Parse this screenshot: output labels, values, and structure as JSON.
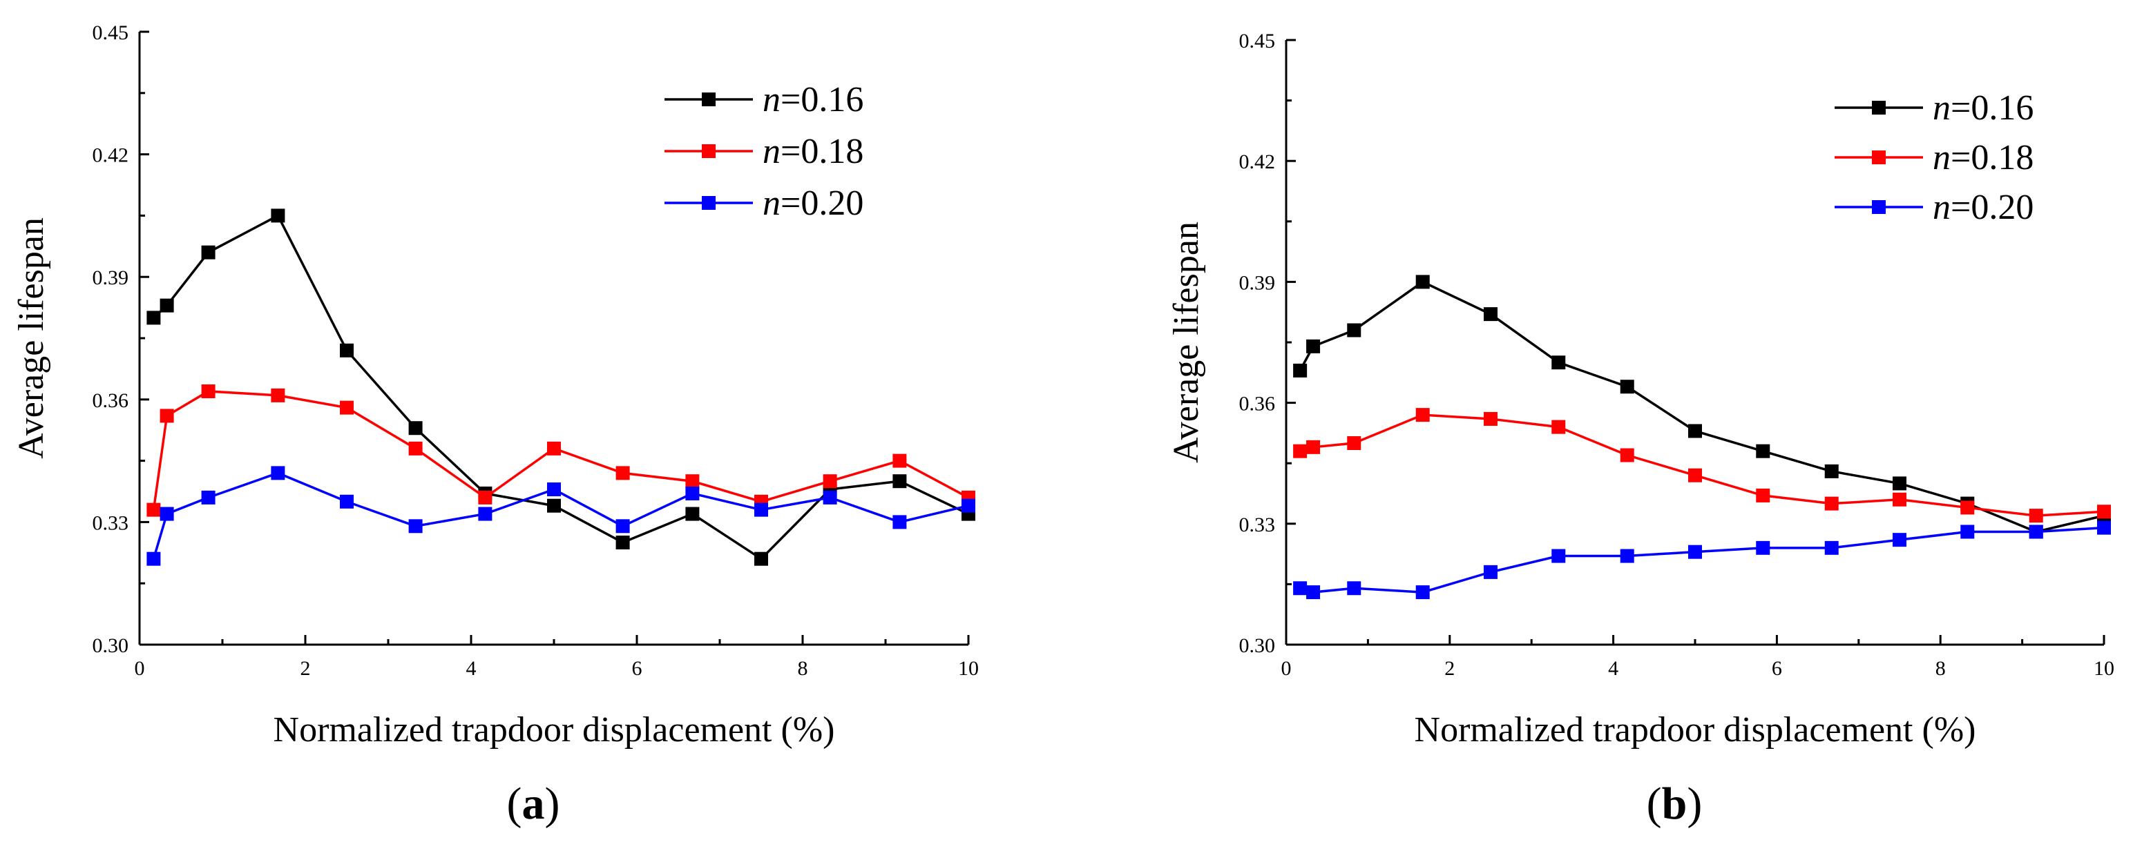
{
  "chart_data": [
    {
      "type": "line",
      "panel_label": "a",
      "title": "",
      "xlabel": "Normalized trapdoor displacement (%)",
      "ylabel": "Average lifespan",
      "xlim": [
        0,
        10
      ],
      "ylim": [
        0.3,
        0.45
      ],
      "xticks": [
        0,
        2,
        4,
        6,
        8,
        10
      ],
      "xtick_labels": [
        "0",
        "2",
        "4",
        "6",
        "8",
        "10"
      ],
      "yticks": [
        0.3,
        0.33,
        0.36,
        0.39,
        0.42,
        0.45
      ],
      "ytick_labels": [
        "0.30",
        "0.33",
        "0.36",
        "0.39",
        "0.42",
        "0.45"
      ],
      "legend_position": "top-right",
      "series": [
        {
          "var": "n",
          "value": "=0.16",
          "color": "#000000",
          "x": [
            0.17,
            0.33,
            0.83,
            1.67,
            2.5,
            3.33,
            4.17,
            5.0,
            5.83,
            6.67,
            7.5,
            8.33,
            9.17,
            10.0
          ],
          "y": [
            0.38,
            0.383,
            0.396,
            0.405,
            0.372,
            0.353,
            0.337,
            0.334,
            0.325,
            0.332,
            0.321,
            0.338,
            0.34,
            0.332
          ]
        },
        {
          "var": "n",
          "value": "=0.18",
          "color": "#ff0000",
          "x": [
            0.17,
            0.33,
            0.83,
            1.67,
            2.5,
            3.33,
            4.17,
            5.0,
            5.83,
            6.67,
            7.5,
            8.33,
            9.17,
            10.0
          ],
          "y": [
            0.333,
            0.356,
            0.362,
            0.361,
            0.358,
            0.348,
            0.336,
            0.348,
            0.342,
            0.34,
            0.335,
            0.34,
            0.345,
            0.336
          ]
        },
        {
          "var": "n",
          "value": "=0.20",
          "color": "#0000ff",
          "x": [
            0.17,
            0.33,
            0.83,
            1.67,
            2.5,
            3.33,
            4.17,
            5.0,
            5.83,
            6.67,
            7.5,
            8.33,
            9.17,
            10.0
          ],
          "y": [
            0.321,
            0.332,
            0.336,
            0.342,
            0.335,
            0.329,
            0.332,
            0.338,
            0.329,
            0.337,
            0.333,
            0.336,
            0.33,
            0.334
          ]
        }
      ]
    },
    {
      "type": "line",
      "panel_label": "b",
      "title": "",
      "xlabel": "Normalized trapdoor displacement (%)",
      "ylabel": "Average lifespan",
      "xlim": [
        0,
        10
      ],
      "ylim": [
        0.3,
        0.45
      ],
      "xticks": [
        0,
        2,
        4,
        6,
        8,
        10
      ],
      "xtick_labels": [
        "0",
        "2",
        "4",
        "6",
        "8",
        "10"
      ],
      "yticks": [
        0.3,
        0.33,
        0.36,
        0.39,
        0.42,
        0.45
      ],
      "ytick_labels": [
        "0.30",
        "0.33",
        "0.36",
        "0.39",
        "0.42",
        "0.45"
      ],
      "legend_position": "top-right",
      "series": [
        {
          "var": "n",
          "value": "=0.16",
          "color": "#000000",
          "x": [
            0.17,
            0.33,
            0.83,
            1.67,
            2.5,
            3.33,
            4.17,
            5.0,
            5.83,
            6.67,
            7.5,
            8.33,
            9.17,
            10.0
          ],
          "y": [
            0.368,
            0.374,
            0.378,
            0.39,
            0.382,
            0.37,
            0.364,
            0.353,
            0.348,
            0.343,
            0.34,
            0.335,
            0.328,
            0.332
          ]
        },
        {
          "var": "n",
          "value": "=0.18",
          "color": "#ff0000",
          "x": [
            0.17,
            0.33,
            0.83,
            1.67,
            2.5,
            3.33,
            4.17,
            5.0,
            5.83,
            6.67,
            7.5,
            8.33,
            9.17,
            10.0
          ],
          "y": [
            0.348,
            0.349,
            0.35,
            0.357,
            0.356,
            0.354,
            0.347,
            0.342,
            0.337,
            0.335,
            0.336,
            0.334,
            0.332,
            0.333
          ]
        },
        {
          "var": "n",
          "value": "=0.20",
          "color": "#0000ff",
          "x": [
            0.17,
            0.33,
            0.83,
            1.67,
            2.5,
            3.33,
            4.17,
            5.0,
            5.83,
            6.67,
            7.5,
            8.33,
            9.17,
            10.0
          ],
          "y": [
            0.314,
            0.313,
            0.314,
            0.313,
            0.318,
            0.322,
            0.322,
            0.323,
            0.324,
            0.324,
            0.326,
            0.328,
            0.328,
            0.329
          ]
        }
      ]
    }
  ]
}
